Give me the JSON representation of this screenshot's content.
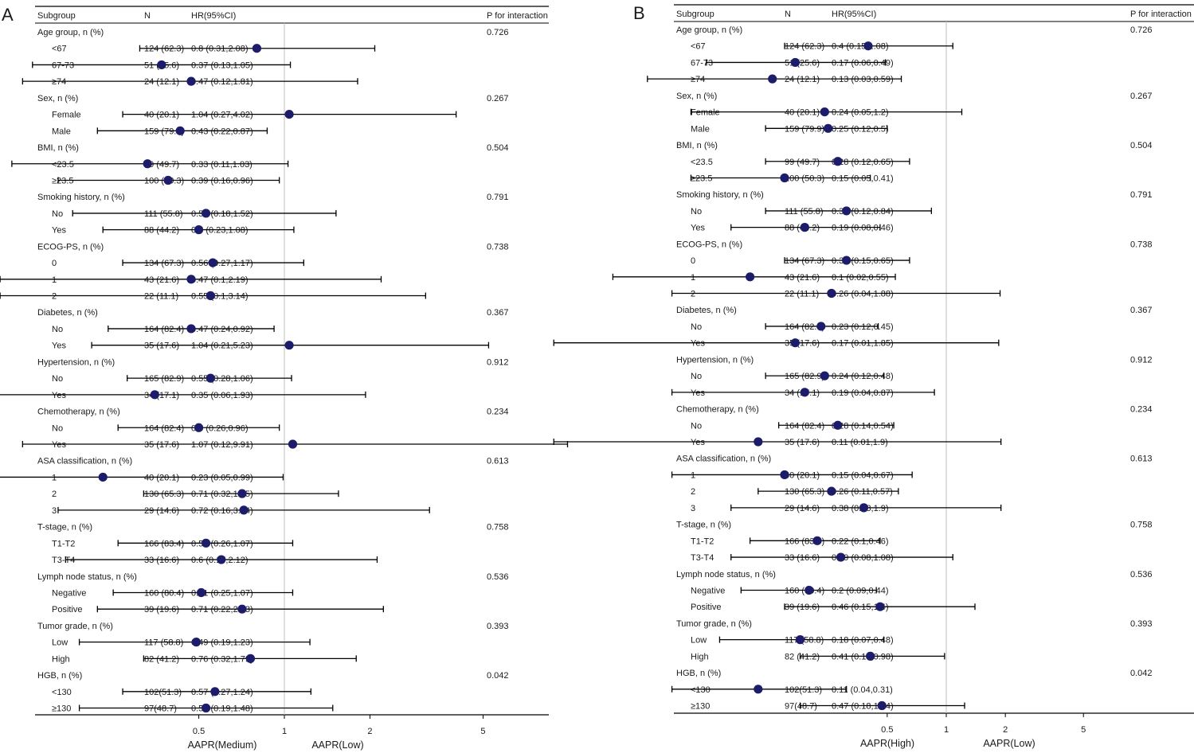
{
  "chart_data": [
    {
      "type": "forest",
      "panel_label": "A",
      "headers": {
        "subgroup": "Subgroup",
        "n": "N",
        "hr": "HR(95%CI)",
        "p": "P for interaction"
      },
      "axis": {
        "ticks": [
          0.5,
          1,
          2,
          5
        ],
        "tick_labels": [
          "0.5",
          "1",
          "2",
          "5"
        ],
        "reference": 1,
        "left_label": "AAPR(Medium)",
        "right_label": "AAPR(Low)"
      },
      "groups": [
        {
          "label": "Age group, n (%)",
          "p": "0.726",
          "rows": [
            {
              "label": "<67",
              "n": "124 (62.3)",
              "hr_text": "0.8 (0.31,2.08)",
              "hr": 0.8,
              "lo": 0.31,
              "hi": 2.08
            },
            {
              "label": "67-73",
              "n": "51 (25.6)",
              "hr_text": "0.37 (0.13,1.05)",
              "hr": 0.37,
              "lo": 0.13,
              "hi": 1.05
            },
            {
              "label": "≥74",
              "n": "24 (12.1)",
              "hr_text": "0.47 (0.12,1.81)",
              "hr": 0.47,
              "lo": 0.12,
              "hi": 1.81
            }
          ]
        },
        {
          "label": "Sex, n (%)",
          "p": "0.267",
          "rows": [
            {
              "label": "Female",
              "n": "40 (20.1)",
              "hr_text": "1.04 (0.27,4.02)",
              "hr": 1.04,
              "lo": 0.27,
              "hi": 4.02
            },
            {
              "label": "Male",
              "n": "159 (79.9)",
              "hr_text": "0.43 (0.22,0.87)",
              "hr": 0.43,
              "lo": 0.22,
              "hi": 0.87
            }
          ]
        },
        {
          "label": "BMI, n (%)",
          "p": "0.504",
          "rows": [
            {
              "label": "<23.5",
              "n": "99 (49.7)",
              "hr_text": "0.33 (0.11,1.03)",
              "hr": 0.33,
              "lo": 0.11,
              "hi": 1.03
            },
            {
              "label": "≥23.5",
              "n": "100 (50.3)",
              "hr_text": "0.39 (0.16,0.96)",
              "hr": 0.39,
              "lo": 0.16,
              "hi": 0.96
            }
          ]
        },
        {
          "label": "Smoking history, n (%)",
          "p": "0.791",
          "rows": [
            {
              "label": "No",
              "n": "111 (55.8)",
              "hr_text": "0.53 (0.18,1.52)",
              "hr": 0.53,
              "lo": 0.18,
              "hi": 1.52
            },
            {
              "label": "Yes",
              "n": "88 (44.2)",
              "hr_text": "0.5 (0.23,1.08)",
              "hr": 0.5,
              "lo": 0.23,
              "hi": 1.08
            }
          ]
        },
        {
          "label": "ECOG-PS, n (%)",
          "p": "0.738",
          "rows": [
            {
              "label": "0",
              "n": "134 (67.3)",
              "hr_text": "0.56 (0.27,1.17)",
              "hr": 0.56,
              "lo": 0.27,
              "hi": 1.17
            },
            {
              "label": "1",
              "n": "43 (21.6)",
              "hr_text": "0.47 (0.1,2.19)",
              "hr": 0.47,
              "lo": 0.1,
              "hi": 2.19
            },
            {
              "label": "2",
              "n": "22 (11.1)",
              "hr_text": "0.55 (0.1,3.14)",
              "hr": 0.55,
              "lo": 0.1,
              "hi": 3.14
            }
          ]
        },
        {
          "label": "Diabetes, n (%)",
          "p": "0.367",
          "rows": [
            {
              "label": "No",
              "n": "164 (82.4)",
              "hr_text": "0.47 (0.24,0.92)",
              "hr": 0.47,
              "lo": 0.24,
              "hi": 0.92
            },
            {
              "label": "Yes",
              "n": "35 (17.6)",
              "hr_text": "1.04 (0.21,5.23)",
              "hr": 1.04,
              "lo": 0.21,
              "hi": 5.23
            }
          ]
        },
        {
          "label": "Hypertension, n (%)",
          "p": "0.912",
          "rows": [
            {
              "label": "No",
              "n": "165 (82.9)",
              "hr_text": "0.55 (0.28,1.06)",
              "hr": 0.55,
              "lo": 0.28,
              "hi": 1.06
            },
            {
              "label": "Yes",
              "n": "34 (17.1)",
              "hr_text": "0.35 (0.06,1.93)",
              "hr": 0.35,
              "lo": 0.06,
              "hi": 1.93
            }
          ]
        },
        {
          "label": "Chemotherapy, n (%)",
          "p": "0.234",
          "rows": [
            {
              "label": "No",
              "n": "164 (82.4)",
              "hr_text": "0.5 (0.26,0.96)",
              "hr": 0.5,
              "lo": 0.26,
              "hi": 0.96
            },
            {
              "label": "Yes",
              "n": "35 (17.6)",
              "hr_text": "1.07 (0.12,9.91)",
              "hr": 1.07,
              "lo": 0.12,
              "hi": 9.91
            }
          ]
        },
        {
          "label": "ASA classification, n (%)",
          "p": "0.613",
          "rows": [
            {
              "label": "1",
              "n": "40 (20.1)",
              "hr_text": "0.23 (0.05,0.99)",
              "hr": 0.23,
              "lo": 0.05,
              "hi": 0.99
            },
            {
              "label": "2",
              "n": "130 (65.3)",
              "hr_text": "0.71 (0.32,1.55)",
              "hr": 0.71,
              "lo": 0.32,
              "hi": 1.55
            },
            {
              "label": "3",
              "n": "29 (14.6)",
              "hr_text": "0.72 (0.16,3.24)",
              "hr": 0.72,
              "lo": 0.16,
              "hi": 3.24
            }
          ]
        },
        {
          "label": "T-stage, n (%)",
          "p": "0.758",
          "rows": [
            {
              "label": "T1-T2",
              "n": "166 (83.4)",
              "hr_text": "0.53 (0.26,1.07)",
              "hr": 0.53,
              "lo": 0.26,
              "hi": 1.07
            },
            {
              "label": "T3-T4",
              "n": "33 (16.6)",
              "hr_text": "0.6 (0.17,2.12)",
              "hr": 0.6,
              "lo": 0.17,
              "hi": 2.12
            }
          ]
        },
        {
          "label": "Lymph node status, n (%)",
          "p": "0.536",
          "rows": [
            {
              "label": "Negative",
              "n": "160 (80.4)",
              "hr_text": "0.51 (0.25,1.07)",
              "hr": 0.51,
              "lo": 0.25,
              "hi": 1.07
            },
            {
              "label": "Positive",
              "n": "39 (19.6)",
              "hr_text": "0.71 (0.22,2.23)",
              "hr": 0.71,
              "lo": 0.22,
              "hi": 2.23
            }
          ]
        },
        {
          "label": "Tumor grade, n (%)",
          "p": "0.393",
          "rows": [
            {
              "label": "Low",
              "n": "117 (58.8)",
              "hr_text": "0.49 (0.19,1.23)",
              "hr": 0.49,
              "lo": 0.19,
              "hi": 1.23
            },
            {
              "label": "High",
              "n": "82 (41.2)",
              "hr_text": "0.76 (0.32,1.79)",
              "hr": 0.76,
              "lo": 0.32,
              "hi": 1.79
            }
          ]
        },
        {
          "label": "HGB, n (%)",
          "p": "0.042",
          "rows": [
            {
              "label": "<130",
              "n": "102(51.3)",
              "hr_text": "0.57 (0.27,1.24)",
              "hr": 0.57,
              "lo": 0.27,
              "hi": 1.24
            },
            {
              "label": "≥130",
              "n": "97(48.7)",
              "hr_text": "0.53 (0.19,1.48)",
              "hr": 0.53,
              "lo": 0.19,
              "hi": 1.48
            }
          ]
        }
      ]
    },
    {
      "type": "forest",
      "panel_label": "B",
      "headers": {
        "subgroup": "Subgroup",
        "n": "N",
        "hr": "HR(95%CI)",
        "p": "P for interaction"
      },
      "axis": {
        "ticks": [
          0.5,
          1,
          2,
          5
        ],
        "tick_labels": [
          "0.5",
          "1",
          "2",
          "5"
        ],
        "reference": 1,
        "left_label": "AAPR(High)",
        "right_label": "AAPR(Low)"
      },
      "groups": [
        {
          "label": "Age group, n (%)",
          "p": "0.726",
          "rows": [
            {
              "label": "<67",
              "n": "124 (62.3)",
              "hr_text": "0.4 (0.15,1.08)",
              "hr": 0.4,
              "lo": 0.15,
              "hi": 1.08
            },
            {
              "label": "67-73",
              "n": "51 (25.6)",
              "hr_text": "0.17 (0.06,0.49)",
              "hr": 0.17,
              "lo": 0.06,
              "hi": 0.49
            },
            {
              "label": "≥74",
              "n": "24 (12.1)",
              "hr_text": "0.13 (0.03,0.59)",
              "hr": 0.13,
              "lo": 0.03,
              "hi": 0.59
            }
          ]
        },
        {
          "label": "Sex, n (%)",
          "p": "0.267",
          "rows": [
            {
              "label": "Female",
              "n": "40 (20.1)",
              "hr_text": "0.24 (0.05,1.2)",
              "hr": 0.24,
              "lo": 0.05,
              "hi": 1.2
            },
            {
              "label": "Male",
              "n": "159 (79.9)",
              "hr_text": "0.25 (0.12,0.5)",
              "hr": 0.25,
              "lo": 0.12,
              "hi": 0.5
            }
          ]
        },
        {
          "label": "BMI, n (%)",
          "p": "0.504",
          "rows": [
            {
              "label": "<23.5",
              "n": "99 (49.7)",
              "hr_text": "0.28 (0.12,0.65)",
              "hr": 0.28,
              "lo": 0.12,
              "hi": 0.65
            },
            {
              "label": "≥23.5",
              "n": "100 (50.3)",
              "hr_text": "0.15 (0.05,0.41)",
              "hr": 0.15,
              "lo": 0.05,
              "hi": 0.41
            }
          ]
        },
        {
          "label": "Smoking history, n (%)",
          "p": "0.791",
          "rows": [
            {
              "label": "No",
              "n": "111 (55.8)",
              "hr_text": "0.31 (0.12,0.84)",
              "hr": 0.31,
              "lo": 0.12,
              "hi": 0.84
            },
            {
              "label": "Yes",
              "n": "88 (44.2)",
              "hr_text": "0.19 (0.08,0.46)",
              "hr": 0.19,
              "lo": 0.08,
              "hi": 0.46
            }
          ]
        },
        {
          "label": "ECOG-PS, n (%)",
          "p": "0.738",
          "rows": [
            {
              "label": "0",
              "n": "134 (67.3)",
              "hr_text": "0.31 (0.15,0.65)",
              "hr": 0.31,
              "lo": 0.15,
              "hi": 0.65
            },
            {
              "label": "1",
              "n": "43 (21.6)",
              "hr_text": "0.1 (0.02,0.55)",
              "hr": 0.1,
              "lo": 0.02,
              "hi": 0.55
            },
            {
              "label": "2",
              "n": "22 (11.1)",
              "hr_text": "0.26 (0.04,1.88)",
              "hr": 0.26,
              "lo": 0.04,
              "hi": 1.88
            }
          ]
        },
        {
          "label": "Diabetes, n (%)",
          "p": "0.367",
          "rows": [
            {
              "label": "No",
              "n": "164 (82.4)",
              "hr_text": "0.23 (0.12,0.45)",
              "hr": 0.23,
              "lo": 0.12,
              "hi": 0.45
            },
            {
              "label": "Yes",
              "n": "35 (17.6)",
              "hr_text": "0.17 (0.01,1.85)",
              "hr": 0.17,
              "lo": 0.01,
              "hi": 1.85
            }
          ]
        },
        {
          "label": "Hypertension, n (%)",
          "p": "0.912",
          "rows": [
            {
              "label": "No",
              "n": "165 (82.9)",
              "hr_text": "0.24 (0.12,0.48)",
              "hr": 0.24,
              "lo": 0.12,
              "hi": 0.48
            },
            {
              "label": "Yes",
              "n": "34 (17.1)",
              "hr_text": "0.19 (0.04,0.87)",
              "hr": 0.19,
              "lo": 0.04,
              "hi": 0.87
            }
          ]
        },
        {
          "label": "Chemotherapy, n (%)",
          "p": "0.234",
          "rows": [
            {
              "label": "No",
              "n": "164 (82.4)",
              "hr_text": "0.28 (0.14,0.54)",
              "hr": 0.28,
              "lo": 0.14,
              "hi": 0.54
            },
            {
              "label": "Yes",
              "n": "35 (17.6)",
              "hr_text": "0.11 (0.01,1.9)",
              "hr": 0.11,
              "lo": 0.01,
              "hi": 1.9
            }
          ]
        },
        {
          "label": "ASA classification, n (%)",
          "p": "0.613",
          "rows": [
            {
              "label": "1",
              "n": "40 (20.1)",
              "hr_text": "0.15 (0.04,0.67)",
              "hr": 0.15,
              "lo": 0.04,
              "hi": 0.67
            },
            {
              "label": "2",
              "n": "130 (65.3)",
              "hr_text": "0.26 (0.11,0.57)",
              "hr": 0.26,
              "lo": 0.11,
              "hi": 0.57
            },
            {
              "label": "3",
              "n": "29 (14.6)",
              "hr_text": "0.38 (0.08,1.9)",
              "hr": 0.38,
              "lo": 0.08,
              "hi": 1.9
            }
          ]
        },
        {
          "label": "T-stage, n (%)",
          "p": "0.758",
          "rows": [
            {
              "label": "T1-T2",
              "n": "166 (83.4)",
              "hr_text": "0.22 (0.1,0.46)",
              "hr": 0.22,
              "lo": 0.1,
              "hi": 0.46
            },
            {
              "label": "T3-T4",
              "n": "33 (16.6)",
              "hr_text": "0.29 (0.08,1.08)",
              "hr": 0.29,
              "lo": 0.08,
              "hi": 1.08
            }
          ]
        },
        {
          "label": "Lymph node status, n (%)",
          "p": "0.536",
          "rows": [
            {
              "label": "Negative",
              "n": "160 (80.4)",
              "hr_text": "0.2 (0.09,0.44)",
              "hr": 0.2,
              "lo": 0.09,
              "hi": 0.44
            },
            {
              "label": "Positive",
              "n": "39 (19.6)",
              "hr_text": "0.46 (0.15,1.4)",
              "hr": 0.46,
              "lo": 0.15,
              "hi": 1.4
            }
          ]
        },
        {
          "label": "Tumor grade, n (%)",
          "p": "0.393",
          "rows": [
            {
              "label": "Low",
              "n": "117 (58.8)",
              "hr_text": "0.18 (0.07,0.48)",
              "hr": 0.18,
              "lo": 0.07,
              "hi": 0.48
            },
            {
              "label": "High",
              "n": "82 (41.2)",
              "hr_text": "0.41 (0.18,0.98)",
              "hr": 0.41,
              "lo": 0.18,
              "hi": 0.98
            }
          ]
        },
        {
          "label": "HGB, n (%)",
          "p": "0.042",
          "rows": [
            {
              "label": "<130",
              "n": "102(51.3)",
              "hr_text": "0.11 (0.04,0.31)",
              "hr": 0.11,
              "lo": 0.04,
              "hi": 0.31
            },
            {
              "label": "≥130",
              "n": "97(48.7)",
              "hr_text": "0.47 (0.18,1.24)",
              "hr": 0.47,
              "lo": 0.18,
              "hi": 1.24
            }
          ]
        }
      ]
    }
  ],
  "colors": {
    "marker": "#1c1c6b",
    "text": "#1a1a1a",
    "line": "#000000",
    "reference_line": "#bfbfbf"
  }
}
